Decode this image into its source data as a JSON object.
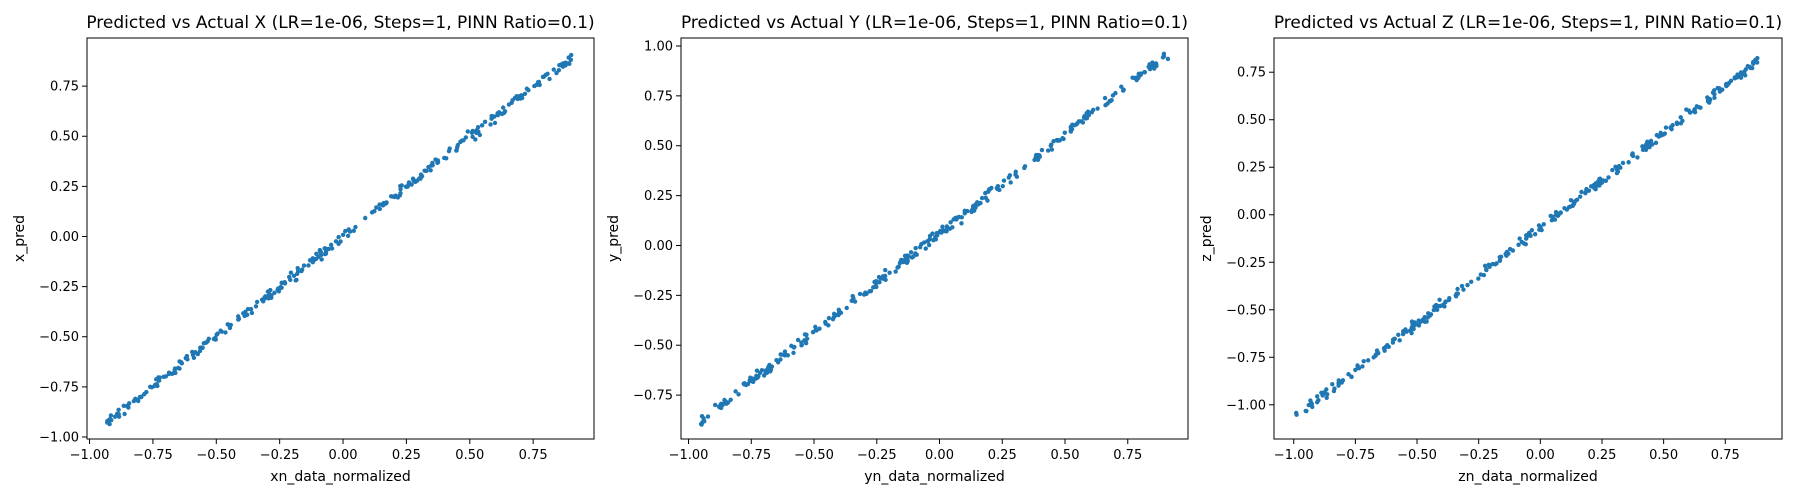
{
  "chart_data": [
    {
      "type": "scatter",
      "title": "Predicted vs Actual X (LR=1e-06, Steps=1, PINN Ratio=0.1)",
      "xlabel": "xn_data_normalized",
      "ylabel": "x_pred",
      "xlim": [
        -1.01,
        0.99
      ],
      "ylim": [
        -1.01,
        0.99
      ],
      "xticks": [
        -1.0,
        -0.75,
        -0.5,
        -0.25,
        0.0,
        0.25,
        0.5,
        0.75
      ],
      "yticks": [
        -1.0,
        -0.75,
        -0.5,
        -0.25,
        0.0,
        0.25,
        0.5,
        0.75
      ],
      "xtick_labels": [
        "−1.00",
        "−0.75",
        "−0.50",
        "−0.25",
        "0.00",
        "0.25",
        "0.50",
        "0.75"
      ],
      "ytick_labels": [
        "−1.00",
        "−0.75",
        "−0.50",
        "−0.25",
        "0.00",
        "0.25",
        "0.50",
        "0.75"
      ],
      "grid": false,
      "trend": {
        "x_min": -0.93,
        "x_max": 0.9,
        "slope": 0.995,
        "intercept": 0.0,
        "n_points": 300
      },
      "color": "#1f77b4"
    },
    {
      "type": "scatter",
      "title": "Predicted vs Actual Y (LR=1e-06, Steps=1, PINN Ratio=0.1)",
      "xlabel": "yn_data_normalized",
      "ylabel": "y_pred",
      "xlim": [
        -1.03,
        0.99
      ],
      "ylim": [
        -0.97,
        1.04
      ],
      "xticks": [
        -1.0,
        -0.75,
        -0.5,
        -0.25,
        0.0,
        0.25,
        0.5,
        0.75
      ],
      "yticks": [
        -0.75,
        -0.5,
        -0.25,
        0.0,
        0.25,
        0.5,
        0.75,
        1.0
      ],
      "xtick_labels": [
        "−1.00",
        "−0.75",
        "−0.50",
        "−0.25",
        "0.00",
        "0.25",
        "0.50",
        "0.75"
      ],
      "ytick_labels": [
        "−0.75",
        "−0.50",
        "−0.25",
        "0.00",
        "0.25",
        "0.50",
        "0.75",
        "1.00"
      ],
      "grid": false,
      "trend": {
        "x_min": -0.95,
        "x_max": 0.91,
        "slope": 0.99,
        "intercept": 0.06,
        "n_points": 300
      },
      "color": "#1f77b4"
    },
    {
      "type": "scatter",
      "title": "Predicted vs Actual Z (LR=1e-06, Steps=1, PINN Ratio=0.1)",
      "xlabel": "zn_data_normalized",
      "ylabel": "z_pred",
      "xlim": [
        -1.08,
        0.98
      ],
      "ylim": [
        -1.18,
        0.93
      ],
      "xticks": [
        -1.0,
        -0.75,
        -0.5,
        -0.25,
        0.0,
        0.25,
        0.5,
        0.75
      ],
      "yticks": [
        -1.0,
        -0.75,
        -0.5,
        -0.25,
        0.0,
        0.25,
        0.5,
        0.75
      ],
      "xtick_labels": [
        "−1.00",
        "−0.75",
        "−0.50",
        "−0.25",
        "0.00",
        "0.25",
        "0.50",
        "0.75"
      ],
      "ytick_labels": [
        "−1.00",
        "−0.75",
        "−0.50",
        "−0.25",
        "0.00",
        "0.25",
        "0.50",
        "0.75"
      ],
      "grid": false,
      "trend": {
        "x_min": -0.99,
        "x_max": 0.88,
        "slope": 1.0,
        "intercept": -0.07,
        "n_points": 300
      },
      "color": "#1f77b4"
    }
  ]
}
